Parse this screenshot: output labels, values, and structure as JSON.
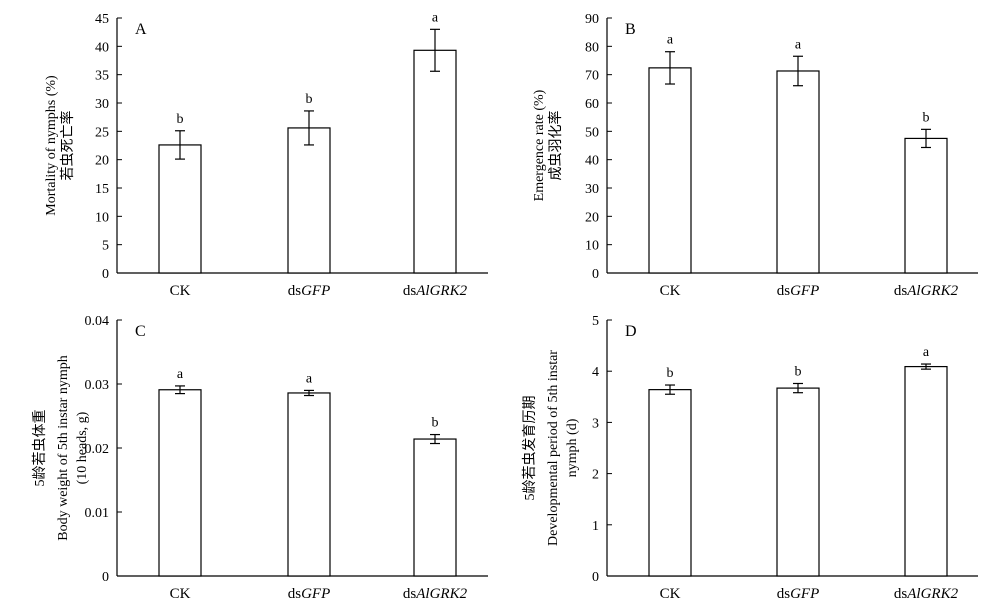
{
  "chart_data": [
    {
      "type": "bar",
      "panel": "A",
      "categories": [
        "CK",
        "dsGFP",
        "dsAlGRK2"
      ],
      "category_labels": [
        {
          "plain": "CK",
          "italic": ""
        },
        {
          "plain": "ds",
          "italic": "GFP"
        },
        {
          "plain": "ds",
          "italic": "AlGRK2"
        }
      ],
      "values": [
        22.6,
        25.6,
        39.3
      ],
      "errors": [
        2.5,
        3.0,
        3.7
      ],
      "letters": [
        "b",
        "b",
        "a"
      ],
      "ylabel_cn": "若虫死亡率",
      "ylabel": "Mortality of nymphs (%)",
      "ylabel_line2": "",
      "ylim": [
        0,
        45
      ],
      "yticks": [
        0,
        5,
        10,
        15,
        20,
        25,
        30,
        35,
        40,
        45
      ],
      "ytick_labels": [
        "0",
        "5",
        "10",
        "15",
        "20",
        "25",
        "30",
        "35",
        "40",
        "45"
      ]
    },
    {
      "type": "bar",
      "panel": "B",
      "categories": [
        "CK",
        "dsGFP",
        "dsAlGRK2"
      ],
      "category_labels": [
        {
          "plain": "CK",
          "italic": ""
        },
        {
          "plain": "ds",
          "italic": "GFP"
        },
        {
          "plain": "ds",
          "italic": "AlGRK2"
        }
      ],
      "values": [
        72.4,
        71.3,
        47.5
      ],
      "errors": [
        5.7,
        5.2,
        3.2
      ],
      "letters": [
        "a",
        "a",
        "b"
      ],
      "ylabel_cn": "成虫羽化率",
      "ylabel": "Emergence rate (%)",
      "ylabel_line2": "",
      "ylim": [
        0,
        90
      ],
      "yticks": [
        0,
        10,
        20,
        30,
        40,
        50,
        60,
        70,
        80,
        90
      ],
      "ytick_labels": [
        "0",
        "10",
        "20",
        "30",
        "40",
        "50",
        "60",
        "70",
        "80",
        "90"
      ]
    },
    {
      "type": "bar",
      "panel": "C",
      "categories": [
        "CK",
        "dsGFP",
        "dsAlGRK2"
      ],
      "category_labels": [
        {
          "plain": "CK",
          "italic": ""
        },
        {
          "plain": "ds",
          "italic": "GFP"
        },
        {
          "plain": "ds",
          "italic": "AlGRK2"
        }
      ],
      "values": [
        0.0291,
        0.0286,
        0.0214
      ],
      "errors": [
        0.0006,
        0.0004,
        0.0007
      ],
      "letters": [
        "a",
        "a",
        "b"
      ],
      "ylabel_cn": "5龄若虫体重",
      "ylabel": "Body weight of 5th instar nymph",
      "ylabel_line2": "(10 heads, g)",
      "ylim": [
        0,
        0.04
      ],
      "yticks": [
        0,
        0.01,
        0.02,
        0.03,
        0.04
      ],
      "ytick_labels": [
        "0",
        "0.01",
        "0.02",
        "0.03",
        "0.04"
      ]
    },
    {
      "type": "bar",
      "panel": "D",
      "categories": [
        "CK",
        "dsGFP",
        "dsAlGRK2"
      ],
      "category_labels": [
        {
          "plain": "CK",
          "italic": ""
        },
        {
          "plain": "ds",
          "italic": "GFP"
        },
        {
          "plain": "ds",
          "italic": "AlGRK2"
        }
      ],
      "values": [
        3.64,
        3.67,
        4.09
      ],
      "errors": [
        0.09,
        0.09,
        0.05
      ],
      "letters": [
        "b",
        "b",
        "a"
      ],
      "ylabel_cn": "5龄若虫发育历期",
      "ylabel": "Developmental period of 5th instar",
      "ylabel_line2": "nymph (d)",
      "ylim": [
        0,
        5
      ],
      "yticks": [
        0,
        1,
        2,
        3,
        4,
        5
      ],
      "ytick_labels": [
        "0",
        "1",
        "2",
        "3",
        "4",
        "5"
      ]
    }
  ]
}
